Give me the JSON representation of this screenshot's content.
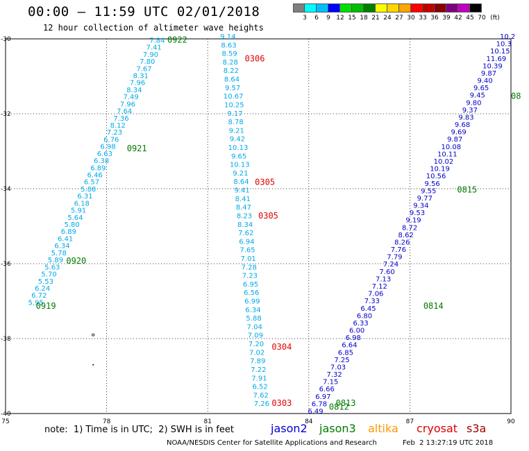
{
  "header": {
    "title": "00:00 – 11:59 UTC 02/01/2018",
    "subtitle": "12 hour collection of altimeter wave heights"
  },
  "color_scale": {
    "labels": [
      "3",
      "6",
      "9",
      "12",
      "15",
      "18",
      "21",
      "24",
      "27",
      "30",
      "33",
      "36",
      "39",
      "42",
      "45",
      "70",
      "(ft)"
    ],
    "colors": [
      "#7f7f7f",
      "#00ffff",
      "#00bfff",
      "#0000ff",
      "#00e000",
      "#00c000",
      "#008000",
      "#ffff00",
      "#ffd700",
      "#ffa500",
      "#ff0000",
      "#c00000",
      "#8b0000",
      "#800080",
      "#c000c0",
      "#000000"
    ]
  },
  "footer": {
    "note": "note:  1) Time is in UTC;  2) SWH is in feet",
    "legend": [
      {
        "label": "jason2",
        "color": "#0000d0"
      },
      {
        "label": "jason3",
        "color": "#007a00"
      },
      {
        "label": "altika",
        "color": "#ff9900"
      },
      {
        "label": "cryosat",
        "color": "#e00000"
      },
      {
        "label": "s3a",
        "color": "#a00000"
      }
    ],
    "credit": "NOAA/NESDIS Center for Satellite Applications and Research",
    "timestamp": "Feb  2 13:27:19 UTC 2018"
  },
  "chart_data": {
    "type": "scatter",
    "title": "00:00 – 11:59 UTC 02/01/2018",
    "subtitle": "12 hour collection of altimeter wave heights",
    "xlim": [
      75,
      90
    ],
    "ylim": [
      -40,
      -30
    ],
    "x_ticks": [
      75,
      78,
      81,
      84,
      87,
      90
    ],
    "y_ticks": [
      -30,
      -32,
      -34,
      -36,
      -38,
      -40
    ],
    "grid": true,
    "tracks": [
      {
        "satellite": "jason3",
        "color": "#00a8e8",
        "values": [
          "5.95",
          "6.72",
          "6.24",
          "5.53",
          "5.70",
          "5.63",
          "5.89",
          "5.78",
          "6.34",
          "6.41",
          "6.89",
          "5.80",
          "5.64",
          "5.91",
          "6.18",
          "6.31",
          "5.88",
          "6.57",
          "6.46",
          "6.89",
          "6.38",
          "6.63",
          "6.98",
          "6.76",
          "7.23",
          "8.12",
          "7.36",
          "7.64",
          "7.96",
          "7.49",
          "8.34",
          "7.96",
          "8.31",
          "7.67",
          "7.80",
          "7.90",
          "7.41",
          "7.84"
        ],
        "start": [
          75.9,
          -37.1
        ],
        "end": [
          79.5,
          -30.1
        ]
      },
      {
        "satellite": "cryosat",
        "color": "#00a8e8",
        "values": [
          "9.14",
          "8.63",
          "8.59",
          "8.28",
          "8.22",
          "8.64",
          "9.57",
          "10.67",
          "10.25",
          "9.17",
          "8.78",
          "9.21",
          "9.42",
          "10.13",
          "9.65",
          "10.13",
          "9.21",
          "8.64",
          "9.41",
          "8.41",
          "8.47",
          "8.23",
          "8.34",
          "7.62",
          "6.94",
          "7.65",
          "7.01",
          "7.28",
          "7.23",
          "6.95",
          "6.56",
          "6.99",
          "6.34",
          "5.88",
          "7.04",
          "7.09",
          "7.20",
          "7.02",
          "7.89",
          "7.22",
          "7.91",
          "6.52",
          "7.62",
          "7.26"
        ],
        "start": [
          81.6,
          -30.0
        ],
        "end": [
          82.6,
          -39.8
        ]
      },
      {
        "satellite": "jason3",
        "color": "#0000c8",
        "values": [
          "6.49",
          "6.78",
          "6.97",
          "6.66",
          "7.15",
          "7.32",
          "7.03",
          "7.25",
          "6.85",
          "6.64",
          "6.98",
          "6.00",
          "6.33",
          "6.80",
          "6.45",
          "7.33",
          "7.06",
          "7.12",
          "7.13",
          "7.60",
          "7.24",
          "7.79",
          "7.76",
          "8.26",
          "8.62",
          "8.72",
          "9.19",
          "9.53",
          "9.34",
          "9.77",
          "9.55",
          "9.56",
          "10.56",
          "10.19",
          "10.02",
          "10.11",
          "10.08",
          "9.87",
          "9.69",
          "9.68",
          "9.83",
          "9.37",
          "9.80",
          "9.45",
          "9.65",
          "9.40",
          "9.87",
          "10.39",
          "11.69",
          "10.15",
          "10.3",
          "10.2"
        ],
        "start": [
          84.2,
          -40.0
        ],
        "end": [
          89.9,
          -30.0
        ]
      }
    ],
    "time_labels": [
      {
        "label": "0922",
        "x": 79.8,
        "y": -30.1,
        "satellite": "jason3"
      },
      {
        "label": "0921",
        "x": 78.6,
        "y": -33.0,
        "satellite": "jason3"
      },
      {
        "label": "0920",
        "x": 76.8,
        "y": -36.0,
        "satellite": "jason3"
      },
      {
        "label": "0919",
        "x": 75.9,
        "y": -37.2,
        "satellite": "jason3"
      },
      {
        "label": "0306",
        "x": 82.1,
        "y": -30.6,
        "satellite": "cryosat"
      },
      {
        "label": "0305",
        "x": 82.4,
        "y": -33.9,
        "satellite": "cryosat"
      },
      {
        "label": "0305",
        "x": 82.5,
        "y": -34.8,
        "satellite": "cryosat"
      },
      {
        "label": "0304",
        "x": 82.9,
        "y": -38.3,
        "satellite": "cryosat"
      },
      {
        "label": "0303",
        "x": 82.9,
        "y": -39.8,
        "satellite": "cryosat"
      },
      {
        "label": "0815",
        "x": 88.4,
        "y": -34.1,
        "satellite": "jason3"
      },
      {
        "label": "0814",
        "x": 87.4,
        "y": -37.2,
        "satellite": "jason3"
      },
      {
        "label": "0813",
        "x": 84.8,
        "y": -39.8,
        "satellite": "jason3"
      },
      {
        "label": "0812",
        "x": 84.6,
        "y": -39.9,
        "satellite": "jason3"
      },
      {
        "label": "08",
        "x": 90.0,
        "y": -31.6,
        "satellite": "jason3"
      }
    ]
  }
}
